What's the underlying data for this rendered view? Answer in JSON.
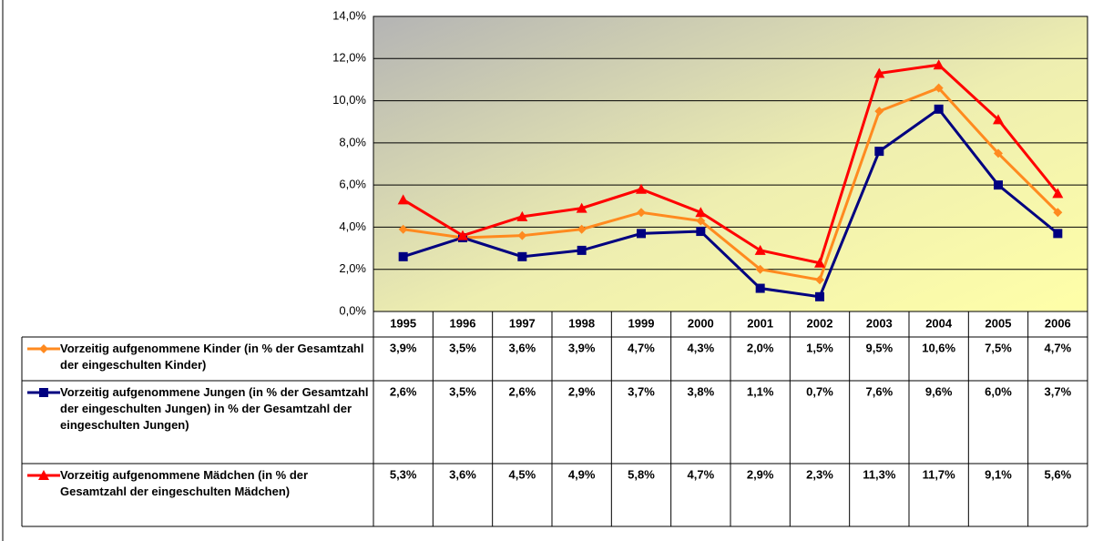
{
  "chart_data": {
    "type": "line",
    "categories": [
      "1995",
      "1996",
      "1997",
      "1998",
      "1999",
      "2000",
      "2001",
      "2002",
      "2003",
      "2004",
      "2005",
      "2006"
    ],
    "series": [
      {
        "name": "Vorzeitig aufgenommene Kinder (in % der Gesamtzahl der eingeschulten Kinder)",
        "color": "#ff8a1f",
        "marker": "diamond",
        "values": [
          3.9,
          3.5,
          3.6,
          3.9,
          4.7,
          4.3,
          2.0,
          1.5,
          9.5,
          10.6,
          7.5,
          4.7
        ],
        "value_labels": [
          "3,9%",
          "3,5%",
          "3,6%",
          "3,9%",
          "4,7%",
          "4,3%",
          "2,0%",
          "1,5%",
          "9,5%",
          "10,6%",
          "7,5%",
          "4,7%"
        ]
      },
      {
        "name": "Vorzeitig aufgenommene Jungen (in % der Gesamtzahl der eingeschulten Jungen) in % der Gesamtzahl der eingeschulten Jungen)",
        "color": "#000080",
        "marker": "square",
        "values": [
          2.6,
          3.5,
          2.6,
          2.9,
          3.7,
          3.8,
          1.1,
          0.7,
          7.6,
          9.6,
          6.0,
          3.7
        ],
        "value_labels": [
          "2,6%",
          "3,5%",
          "2,6%",
          "2,9%",
          "3,7%",
          "3,8%",
          "1,1%",
          "0,7%",
          "7,6%",
          "9,6%",
          "6,0%",
          "3,7%"
        ]
      },
      {
        "name": "Vorzeitig aufgenommene Mädchen (in % der Gesamtzahl der eingeschulten Mädchen)",
        "color": "#ff0000",
        "marker": "triangle",
        "values": [
          5.3,
          3.6,
          4.5,
          4.9,
          5.8,
          4.7,
          2.9,
          2.3,
          11.3,
          11.7,
          9.1,
          5.6
        ],
        "value_labels": [
          "5,3%",
          "3,6%",
          "4,5%",
          "4,9%",
          "5,8%",
          "4,7%",
          "2,9%",
          "2,3%",
          "11,3%",
          "11,7%",
          "9,1%",
          "5,6%"
        ]
      }
    ],
    "ylim": [
      0,
      14
    ],
    "yticks": [
      {
        "value": 0,
        "label": "0,0%"
      },
      {
        "value": 2,
        "label": "2,0%"
      },
      {
        "value": 4,
        "label": "4,0%"
      },
      {
        "value": 6,
        "label": "6,0%"
      },
      {
        "value": 8,
        "label": "8,0%"
      },
      {
        "value": 10,
        "label": "10,0%"
      },
      {
        "value": 12,
        "label": "12,0%"
      },
      {
        "value": 14,
        "label": "14,0%"
      }
    ],
    "grid": true
  }
}
